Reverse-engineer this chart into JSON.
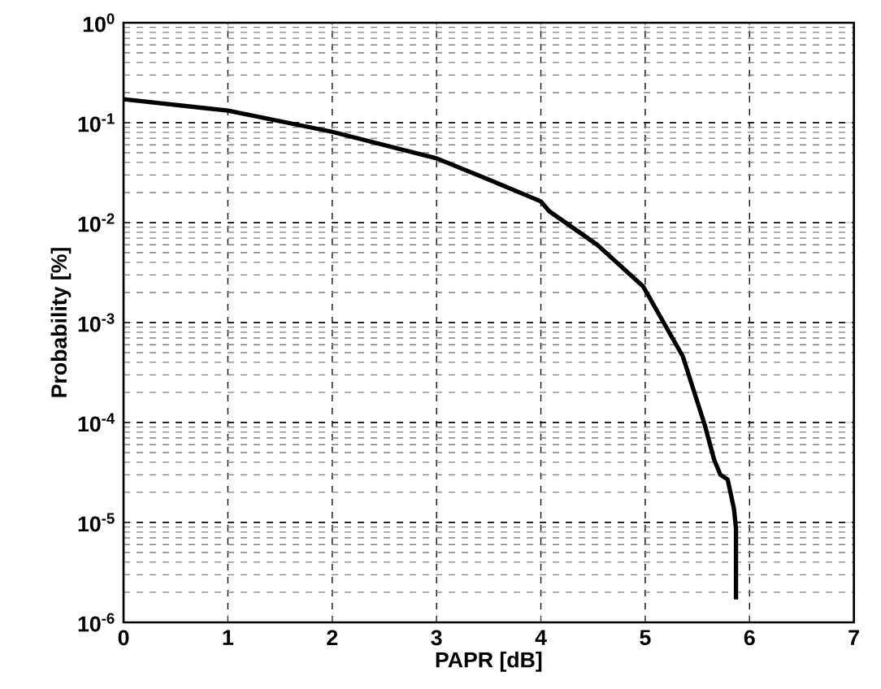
{
  "chart_data": {
    "type": "line",
    "xlabel": "PAPR [dB]",
    "ylabel": "Probability [%]",
    "log": "y",
    "grid": true,
    "line_style": "solid",
    "marker": "none",
    "xlim": [
      0,
      7
    ],
    "xticks": [
      0,
      1,
      2,
      3,
      4,
      5,
      6,
      7
    ],
    "ylim": [
      1e-06,
      1
    ],
    "yticks": [
      {
        "value": 1e-06,
        "label": "10$^{-6}$"
      },
      {
        "value": 1e-05,
        "label": "10$^{-5}$"
      },
      {
        "value": 0.0001,
        "label": "10$^{-4}$"
      },
      {
        "value": 0.001,
        "label": "10$^{-3}$"
      },
      {
        "value": 0.01,
        "label": "10$^{-2}$"
      },
      {
        "value": 0.1,
        "label": "10$^{-1}$"
      },
      {
        "value": 1,
        "label": "10$^{0}$"
      }
    ],
    "x": [
      0,
      1,
      2,
      3,
      3.5,
      4,
      4.08,
      4.54,
      4.98,
      5.36,
      5.57,
      5.66,
      5.72,
      5.79,
      5.85,
      5.87,
      5.87
    ],
    "series": [
      {
        "color": "#000000",
        "values": [
          0.172,
          0.132,
          0.081,
          0.044,
          0.027,
          0.0163,
          0.013,
          0.006,
          0.0023,
          0.00046,
          9.5e-05,
          4.27e-05,
          3e-05,
          2.69e-05,
          1.38e-05,
          8.7e-06,
          1.7e-06
        ]
      }
    ]
  }
}
